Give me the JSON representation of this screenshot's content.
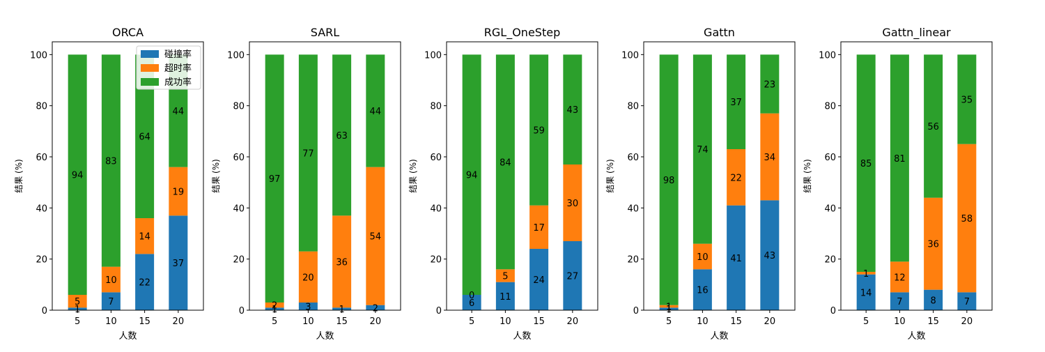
{
  "colors": {
    "collision": "#1f77b4",
    "timeout": "#ff7f0e",
    "success": "#2ca02c"
  },
  "legend": {
    "placement": "top-right of first subplot",
    "entries": [
      "碰撞率",
      "超时率",
      "成功率"
    ]
  },
  "chart_data": [
    {
      "type": "bar",
      "stacked": true,
      "title": "ORCA",
      "xlabel": "人数",
      "ylabel": "结果 (%)",
      "categories": [
        "5",
        "10",
        "15",
        "20"
      ],
      "yticks": [
        "0",
        "20",
        "40",
        "60",
        "80",
        "100"
      ],
      "ylim": [
        0,
        105
      ],
      "series": [
        {
          "name": "碰撞率",
          "values": [
            1,
            7,
            22,
            37
          ]
        },
        {
          "name": "超时率",
          "values": [
            5,
            10,
            14,
            19
          ]
        },
        {
          "name": "成功率",
          "values": [
            94,
            83,
            64,
            44
          ]
        }
      ]
    },
    {
      "type": "bar",
      "stacked": true,
      "title": "SARL",
      "xlabel": "人数",
      "ylabel": "结果 (%)",
      "categories": [
        "5",
        "10",
        "15",
        "20"
      ],
      "yticks": [
        "0",
        "20",
        "40",
        "60",
        "80",
        "100"
      ],
      "ylim": [
        0,
        105
      ],
      "series": [
        {
          "name": "碰撞率",
          "values": [
            1,
            3,
            1,
            2
          ]
        },
        {
          "name": "超时率",
          "values": [
            2,
            20,
            36,
            54
          ]
        },
        {
          "name": "成功率",
          "values": [
            97,
            77,
            63,
            44
          ]
        }
      ]
    },
    {
      "type": "bar",
      "stacked": true,
      "title": "RGL_OneStep",
      "xlabel": "人数",
      "ylabel": "结果 (%)",
      "categories": [
        "5",
        "10",
        "15",
        "20"
      ],
      "yticks": [
        "0",
        "20",
        "40",
        "60",
        "80",
        "100"
      ],
      "ylim": [
        0,
        105
      ],
      "series": [
        {
          "name": "碰撞率",
          "values": [
            6,
            11,
            24,
            27
          ]
        },
        {
          "name": "超时率",
          "values": [
            0,
            5,
            17,
            30
          ]
        },
        {
          "name": "成功率",
          "values": [
            94,
            84,
            59,
            43
          ]
        }
      ]
    },
    {
      "type": "bar",
      "stacked": true,
      "title": "Gattn",
      "xlabel": "人数",
      "ylabel": "结果 (%)",
      "categories": [
        "5",
        "10",
        "15",
        "20"
      ],
      "yticks": [
        "0",
        "20",
        "40",
        "60",
        "80",
        "100"
      ],
      "ylim": [
        0,
        105
      ],
      "series": [
        {
          "name": "碰撞率",
          "values": [
            1,
            16,
            41,
            43
          ]
        },
        {
          "name": "超时率",
          "values": [
            1,
            10,
            22,
            34
          ]
        },
        {
          "name": "成功率",
          "values": [
            98,
            74,
            37,
            23
          ]
        }
      ]
    },
    {
      "type": "bar",
      "stacked": true,
      "title": "Gattn_linear",
      "xlabel": "人数",
      "ylabel": "结果 (%)",
      "categories": [
        "5",
        "10",
        "15",
        "20"
      ],
      "yticks": [
        "0",
        "20",
        "40",
        "60",
        "80",
        "100"
      ],
      "ylim": [
        0,
        105
      ],
      "series": [
        {
          "name": "碰撞率",
          "values": [
            14,
            7,
            8,
            7
          ]
        },
        {
          "name": "超时率",
          "values": [
            1,
            12,
            36,
            58
          ]
        },
        {
          "name": "成功率",
          "values": [
            85,
            81,
            56,
            35
          ]
        }
      ]
    }
  ]
}
